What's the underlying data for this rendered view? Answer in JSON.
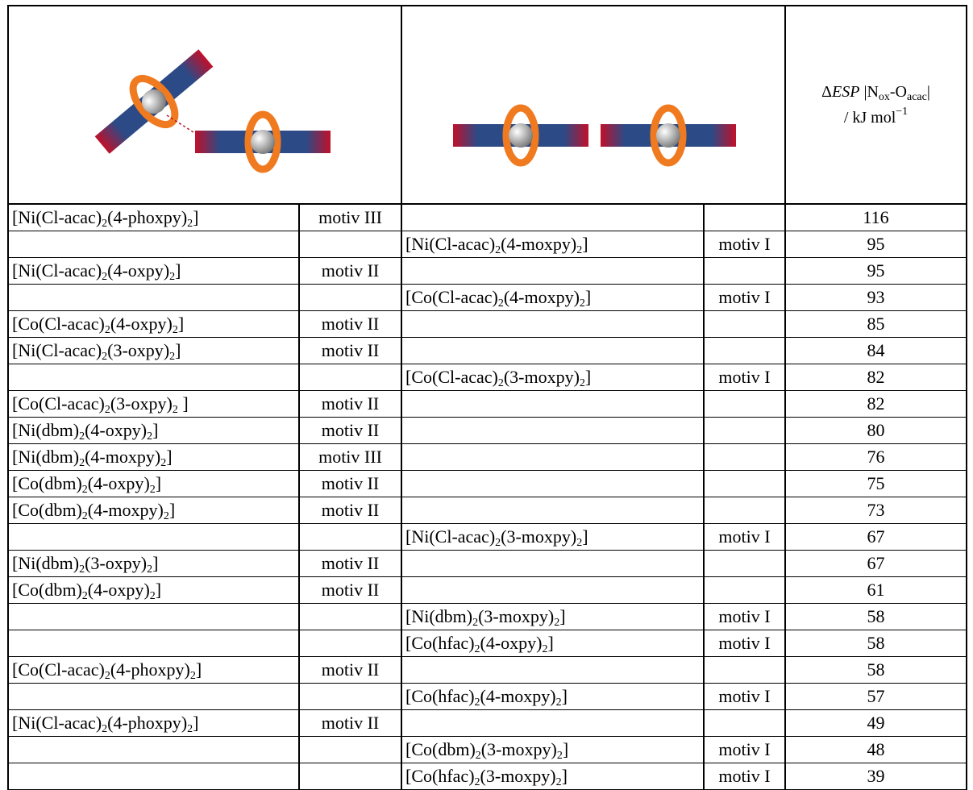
{
  "header": {
    "esp_label": {
      "delta": "Δ",
      "esp": "ESP",
      "bar_open": "|N",
      "sub_ox": "ox",
      "dash_o": "-O",
      "sub_acac": "acac",
      "bar_close": "|",
      "unit": "/ kJ mol",
      "exponent": "−1"
    }
  },
  "table": {
    "rows": [
      {
        "left_compound": "[Ni(Cl-acac)2(4-phoxpy)2]",
        "left_motif": "motiv III",
        "esp": 116
      },
      {
        "right_compound": "[Ni(Cl-acac)2(4-moxpy)2]",
        "right_motif": "motiv I",
        "esp": 95
      },
      {
        "left_compound": "[Ni(Cl-acac)2(4-oxpy)2]",
        "left_motif": "motiv II",
        "esp": 95
      },
      {
        "right_compound": "[Co(Cl-acac)2(4-moxpy)2]",
        "right_motif": "motiv I",
        "esp": 93
      },
      {
        "left_compound": "[Co(Cl-acac)2(4-oxpy)2]",
        "left_motif": "motiv II",
        "esp": 85
      },
      {
        "left_compound": "[Ni(Cl-acac)2(3-oxpy)2]",
        "left_motif": "motiv II",
        "esp": 84
      },
      {
        "right_compound": "[Co(Cl-acac)2(3-moxpy)2]",
        "right_motif": "motiv I",
        "esp": 82
      },
      {
        "left_compound": "[Co(Cl-acac)2(3-oxpy)2 ]",
        "left_motif": "motiv II",
        "esp": 82
      },
      {
        "left_compound": "[Ni(dbm)2(4-oxpy)2]",
        "left_motif": "motiv II",
        "esp": 80
      },
      {
        "left_compound": "[Ni(dbm)2(4-moxpy)2]",
        "left_motif": "motiv III",
        "esp": 76
      },
      {
        "left_compound": "[Co(dbm)2(4-oxpy)2]",
        "left_motif": "motiv II",
        "esp": 75
      },
      {
        "left_compound": "[Co(dbm)2(4-moxpy)2]",
        "left_motif": "motiv II",
        "esp": 73
      },
      {
        "right_compound": "[Ni(Cl-acac)2(3-moxpy)2]",
        "right_motif": "motiv I",
        "esp": 67
      },
      {
        "left_compound": "[Ni(dbm)2(3-oxpy)2]",
        "left_motif": "motiv II",
        "esp": 67
      },
      {
        "left_compound": "[Co(dbm)2(4-oxpy)2]",
        "left_motif": "motiv II",
        "esp": 61
      },
      {
        "right_compound": "[Ni(dbm)2(3-moxpy)2]",
        "right_motif": "motiv I",
        "esp": 58
      },
      {
        "right_compound": "[Co(hfac)2(4-oxpy)2]",
        "right_motif": "motiv I",
        "esp": 58
      },
      {
        "left_compound": "[Co(Cl-acac)2(4-phoxpy)2]",
        "left_motif": "motiv II",
        "esp": 58
      },
      {
        "right_compound": "[Co(hfac)2(4-moxpy)2]",
        "right_motif": "motiv I",
        "esp": 57
      },
      {
        "left_compound": "[Ni(Cl-acac)2(4-phoxpy)2]",
        "left_motif": "motiv II",
        "esp": 49
      },
      {
        "right_compound": "[Co(dbm)2(3-moxpy)2]",
        "right_motif": "motiv I",
        "esp": 48
      },
      {
        "right_compound": "[Co(hfac)2(3-moxpy)2]",
        "right_motif": "motiv I",
        "esp": 39
      }
    ]
  }
}
